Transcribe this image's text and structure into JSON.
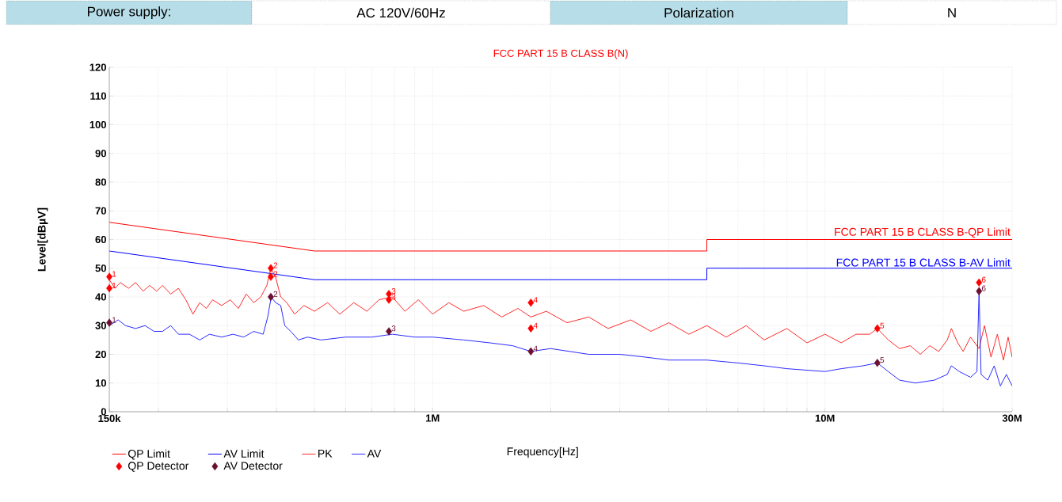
{
  "chart_data": {
    "type": "line",
    "title": "FCC PART 15 B CLASS B(N)",
    "xlabel": "Frequency[Hz]",
    "ylabel": "Level[dBµV]",
    "annotations": [
      "Power supply:",
      "AC 120V/60Hz",
      "Polarization",
      "N",
      {
        "text": "FCC PART 15 B CLASS B-QP Limit",
        "x": 30000000,
        "y": 60
      },
      {
        "text": "FCC PART 15 B CLASS B-AV Limit",
        "x": 30000000,
        "y": 50
      },
      {
        "text": "1",
        "x": 150000,
        "y": 47
      },
      {
        "text": "1",
        "x": 150000,
        "y": 43
      },
      {
        "text": "2",
        "x": 387000,
        "y": 50
      },
      {
        "text": "2",
        "x": 387000,
        "y": 47
      },
      {
        "text": "3",
        "x": 774000,
        "y": 41
      },
      {
        "text": "3",
        "x": 774000,
        "y": 39
      },
      {
        "text": "4",
        "x": 1780000,
        "y": 38
      },
      {
        "text": "4",
        "x": 1780000,
        "y": 29
      },
      {
        "text": "5",
        "x": 13600000,
        "y": 29
      },
      {
        "text": "6",
        "x": 24700000,
        "y": 45
      },
      {
        "text": "1",
        "x": 150000,
        "y": 31
      },
      {
        "text": "2",
        "x": 387000,
        "y": 40
      },
      {
        "text": "3",
        "x": 774000,
        "y": 28
      },
      {
        "text": "4",
        "x": 1780000,
        "y": 21
      },
      {
        "text": "5",
        "x": 13600000,
        "y": 17
      },
      {
        "text": "6",
        "x": 24700000,
        "y": 42
      }
    ],
    "log": "x",
    "grid": true,
    "legend": "bottom",
    "xlim": [
      150000,
      30000000
    ],
    "ylim": [
      0,
      120
    ],
    "xticks": [
      {
        "value": 150000,
        "label": "150k"
      },
      {
        "value": 200000,
        "label": null
      },
      {
        "value": 300000,
        "label": null
      },
      {
        "value": 400000,
        "label": null
      },
      {
        "value": 500000,
        "label": null
      },
      {
        "value": 600000,
        "label": null
      },
      {
        "value": 700000,
        "label": null
      },
      {
        "value": 800000,
        "label": null
      },
      {
        "value": 900000,
        "label": null
      },
      {
        "value": 1000000,
        "label": "1M"
      },
      {
        "value": 2000000,
        "label": null
      },
      {
        "value": 3000000,
        "label": null
      },
      {
        "value": 4000000,
        "label": null
      },
      {
        "value": 5000000,
        "label": null
      },
      {
        "value": 6000000,
        "label": null
      },
      {
        "value": 7000000,
        "label": null
      },
      {
        "value": 8000000,
        "label": null
      },
      {
        "value": 9000000,
        "label": null
      },
      {
        "value": 10000000,
        "label": "10M"
      },
      {
        "value": 20000000,
        "label": null
      },
      {
        "value": 30000000,
        "label": "30M"
      }
    ],
    "yticks": [
      0,
      10,
      20,
      30,
      40,
      50,
      60,
      70,
      80,
      90,
      100,
      110,
      120
    ],
    "series": [
      {
        "name": "QP Limit",
        "color": "#ff0000",
        "marker": "none",
        "line_style": "solid",
        "x": [
          150000,
          500000,
          5000000,
          5000000,
          30000000
        ],
        "values": [
          66,
          56,
          56,
          60,
          60
        ]
      },
      {
        "name": "AV Limit",
        "color": "#0000ff",
        "marker": "none",
        "line_style": "solid",
        "x": [
          150000,
          500000,
          5000000,
          5000000,
          30000000
        ],
        "values": [
          56,
          46,
          46,
          50,
          50
        ]
      },
      {
        "name": "PK",
        "color": "#ff2a2a",
        "marker": "none",
        "line_style": "solid",
        "x": [
          150000,
          155000,
          160000,
          168000,
          175000,
          183000,
          190000,
          198000,
          205000,
          215000,
          225000,
          235000,
          245000,
          255000,
          265000,
          275000,
          290000,
          305000,
          320000,
          335000,
          350000,
          365000,
          378000,
          387000,
          398000,
          410000,
          425000,
          445000,
          470000,
          500000,
          540000,
          580000,
          630000,
          680000,
          730000,
          790000,
          850000,
          920000,
          1000000,
          1100000,
          1200000,
          1350000,
          1500000,
          1650000,
          1780000,
          1950000,
          2200000,
          2500000,
          2800000,
          3200000,
          3600000,
          4000000,
          4500000,
          5000000,
          5600000,
          6300000,
          7000000,
          8000000,
          9000000,
          10000000,
          11000000,
          12000000,
          13000000,
          13600000,
          14500000,
          15500000,
          16500000,
          17500000,
          18500000,
          19500000,
          20500000,
          21000000,
          21800000,
          22500000,
          23500000,
          24700000,
          25500000,
          26500000,
          27500000,
          28500000,
          29300000,
          30000000
        ],
        "values": [
          46,
          43,
          45,
          43,
          45,
          42,
          44,
          42,
          44,
          41,
          43,
          39,
          34,
          38,
          36,
          39,
          37,
          39,
          36,
          41,
          38,
          40,
          44,
          50,
          47,
          40,
          38,
          34,
          37,
          35,
          38,
          34,
          38,
          35,
          39,
          40,
          35,
          39,
          34,
          38,
          35,
          37,
          33,
          36,
          33,
          35,
          31,
          33,
          29,
          32,
          28,
          31,
          27,
          30,
          26,
          30,
          25,
          29,
          24,
          27,
          24,
          27,
          27,
          29,
          25,
          22,
          23,
          20,
          23,
          21,
          25,
          29,
          24,
          21,
          26,
          22,
          30,
          19,
          27,
          18,
          26,
          19
        ]
      },
      {
        "name": "AV",
        "color": "#2a2aff",
        "marker": "none",
        "line_style": "solid",
        "x": [
          150000,
          158000,
          165000,
          175000,
          185000,
          195000,
          205000,
          215000,
          225000,
          240000,
          255000,
          270000,
          290000,
          310000,
          330000,
          350000,
          370000,
          380000,
          388000,
          398000,
          410000,
          420000,
          435000,
          455000,
          480000,
          520000,
          600000,
          700000,
          790000,
          900000,
          1000000,
          1200000,
          1400000,
          1600000,
          1780000,
          2000000,
          2500000,
          3000000,
          3500000,
          4000000,
          5000000,
          6000000,
          7000000,
          8000000,
          10000000,
          11000000,
          12500000,
          13600000,
          14500000,
          15500000,
          17000000,
          19000000,
          20500000,
          21000000,
          22000000,
          23500000,
          24400000,
          24700000,
          25000000,
          26000000,
          27000000,
          28000000,
          29000000,
          30000000
        ],
        "values": [
          30,
          32,
          30,
          29,
          30,
          28,
          28,
          30,
          27,
          27,
          25,
          27,
          26,
          27,
          26,
          28,
          27,
          33,
          40,
          38,
          37,
          30,
          28,
          25,
          26,
          25,
          26,
          26,
          27,
          26,
          26,
          25,
          24,
          23,
          21,
          22,
          20,
          20,
          19,
          18,
          18,
          17,
          16,
          15,
          14,
          15,
          16,
          17,
          14,
          11,
          10,
          11,
          13,
          16,
          14,
          12,
          14,
          42,
          13,
          11,
          16,
          9,
          13,
          9
        ]
      },
      {
        "name": "QP Detector",
        "type": "scatter",
        "color": "#ff0000",
        "marker": "diamond",
        "x": [
          150000,
          150000,
          387000,
          387000,
          774000,
          774000,
          1780000,
          1780000,
          13600000,
          24700000
        ],
        "values": [
          47,
          43,
          50,
          47,
          41,
          39,
          38,
          29,
          29,
          45
        ]
      },
      {
        "name": "AV Detector",
        "type": "scatter",
        "color": "#6b1030",
        "marker": "diamond",
        "x": [
          150000,
          387000,
          774000,
          1780000,
          13600000,
          24700000
        ],
        "values": [
          31,
          40,
          28,
          21,
          17,
          42
        ]
      }
    ]
  }
}
